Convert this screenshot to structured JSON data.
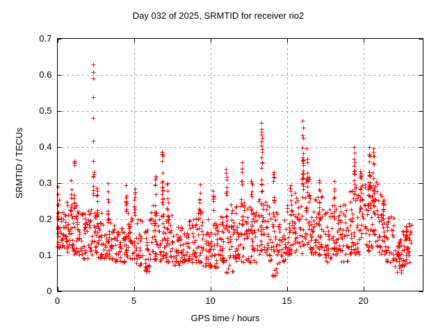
{
  "chart_data": {
    "type": "scatter",
    "title": "Day 032 of 2025, SRMTID for receiver rio2",
    "xlabel": "GPS time / hours",
    "ylabel": "SRMTID / TECUs",
    "xlim": [
      0,
      23.9
    ],
    "ylim": [
      0,
      0.7
    ],
    "xticks": [
      0,
      5,
      10,
      15,
      20
    ],
    "xtick_labels": [
      "0",
      "5",
      "10",
      "15",
      "20"
    ],
    "yticks": [
      0,
      0.1,
      0.2,
      0.3,
      0.4,
      0.5,
      0.6,
      0.7
    ],
    "ytick_labels": [
      "0",
      "0.1",
      "0.2",
      "0.3",
      "0.4",
      "0.5",
      "0.6",
      "0.7"
    ],
    "grid": true,
    "legend": "none",
    "marker": "plus",
    "marker_color": "#ff0000",
    "grid_color": "#9f9f9f",
    "axis_color": "#000000",
    "background": "#ffffff",
    "cloud": {
      "seed": 1032,
      "bands": [
        [
          0.0,
          0.5,
          0.12,
          0.27,
          34
        ],
        [
          0.5,
          1.0,
          0.1,
          0.25,
          32
        ],
        [
          1.0,
          1.5,
          0.1,
          0.24,
          32
        ],
        [
          1.5,
          2.0,
          0.09,
          0.22,
          30
        ],
        [
          2.0,
          2.5,
          0.1,
          0.24,
          30
        ],
        [
          2.5,
          3.0,
          0.09,
          0.22,
          30
        ],
        [
          3.0,
          3.5,
          0.08,
          0.2,
          30
        ],
        [
          3.5,
          4.0,
          0.08,
          0.19,
          28
        ],
        [
          4.0,
          4.5,
          0.08,
          0.2,
          30
        ],
        [
          4.5,
          5.0,
          0.09,
          0.22,
          30
        ],
        [
          5.0,
          5.5,
          0.07,
          0.2,
          30
        ],
        [
          5.5,
          6.0,
          0.05,
          0.18,
          28
        ],
        [
          6.0,
          6.5,
          0.08,
          0.24,
          30
        ],
        [
          6.5,
          7.0,
          0.08,
          0.26,
          30
        ],
        [
          7.0,
          7.5,
          0.08,
          0.21,
          30
        ],
        [
          7.5,
          8.0,
          0.07,
          0.18,
          28
        ],
        [
          8.0,
          8.5,
          0.08,
          0.18,
          30
        ],
        [
          8.5,
          9.0,
          0.08,
          0.2,
          30
        ],
        [
          9.0,
          9.5,
          0.08,
          0.22,
          30
        ],
        [
          9.5,
          10.0,
          0.07,
          0.2,
          30
        ],
        [
          10.0,
          10.5,
          0.06,
          0.21,
          30
        ],
        [
          10.5,
          11.0,
          0.08,
          0.24,
          30
        ],
        [
          11.0,
          11.5,
          0.05,
          0.24,
          30
        ],
        [
          11.5,
          12.0,
          0.08,
          0.24,
          30
        ],
        [
          12.0,
          12.5,
          0.08,
          0.26,
          30
        ],
        [
          12.5,
          13.0,
          0.08,
          0.24,
          30
        ],
        [
          13.0,
          13.5,
          0.1,
          0.27,
          30
        ],
        [
          13.5,
          14.0,
          0.08,
          0.25,
          30
        ],
        [
          14.0,
          14.5,
          0.04,
          0.22,
          30
        ],
        [
          14.5,
          15.0,
          0.08,
          0.21,
          30
        ],
        [
          15.0,
          15.5,
          0.1,
          0.24,
          30
        ],
        [
          15.5,
          16.0,
          0.1,
          0.29,
          32
        ],
        [
          16.0,
          16.5,
          0.12,
          0.33,
          32
        ],
        [
          16.5,
          17.0,
          0.1,
          0.26,
          30
        ],
        [
          17.0,
          17.5,
          0.1,
          0.27,
          30
        ],
        [
          17.5,
          18.0,
          0.08,
          0.24,
          30
        ],
        [
          18.0,
          18.5,
          0.1,
          0.26,
          30
        ],
        [
          18.5,
          19.0,
          0.08,
          0.24,
          30
        ],
        [
          19.0,
          19.5,
          0.1,
          0.28,
          30
        ],
        [
          19.5,
          20.0,
          0.1,
          0.3,
          32
        ],
        [
          20.0,
          20.5,
          0.11,
          0.32,
          34
        ],
        [
          20.5,
          21.0,
          0.12,
          0.33,
          34
        ],
        [
          21.0,
          21.5,
          0.1,
          0.27,
          30
        ],
        [
          21.5,
          22.0,
          0.08,
          0.22,
          28
        ],
        [
          22.0,
          22.5,
          0.05,
          0.15,
          26
        ],
        [
          22.5,
          23.0,
          0.07,
          0.17,
          26
        ],
        [
          23.0,
          23.15,
          0.13,
          0.19,
          8
        ]
      ],
      "columns": [
        [
          0.05,
          0.15,
          0.3,
          12
        ],
        [
          0.9,
          0.2,
          0.31,
          10
        ],
        [
          1.12,
          0.22,
          0.36,
          10
        ],
        [
          2.35,
          0.24,
          0.33,
          8
        ],
        [
          2.6,
          0.2,
          0.31,
          10
        ],
        [
          3.3,
          0.18,
          0.3,
          12
        ],
        [
          4.5,
          0.2,
          0.3,
          10
        ],
        [
          5.05,
          0.18,
          0.29,
          10
        ],
        [
          6.4,
          0.18,
          0.34,
          12
        ],
        [
          6.85,
          0.2,
          0.385,
          14
        ],
        [
          7.2,
          0.16,
          0.3,
          10
        ],
        [
          9.3,
          0.18,
          0.3,
          12
        ],
        [
          10.2,
          0.16,
          0.28,
          10
        ],
        [
          11.05,
          0.18,
          0.34,
          12
        ],
        [
          12.05,
          0.18,
          0.36,
          12
        ],
        [
          12.7,
          0.18,
          0.31,
          10
        ],
        [
          13.35,
          0.27,
          0.455,
          18
        ],
        [
          14.15,
          0.2,
          0.33,
          12
        ],
        [
          15.25,
          0.2,
          0.32,
          10
        ],
        [
          16.05,
          0.28,
          0.462,
          20
        ],
        [
          16.3,
          0.22,
          0.4,
          12
        ],
        [
          17.1,
          0.18,
          0.31,
          12
        ],
        [
          18.1,
          0.18,
          0.31,
          10
        ],
        [
          19.4,
          0.25,
          0.39,
          14
        ],
        [
          19.8,
          0.22,
          0.38,
          12
        ],
        [
          20.4,
          0.24,
          0.39,
          18
        ],
        [
          20.65,
          0.22,
          0.39,
          16
        ],
        [
          21.3,
          0.14,
          0.26,
          10
        ],
        [
          22.3,
          0.055,
          0.14,
          10
        ],
        [
          22.8,
          0.09,
          0.19,
          12
        ]
      ],
      "points": [
        [
          2.35,
          0.627
        ],
        [
          2.35,
          0.607
        ],
        [
          2.36,
          0.59
        ],
        [
          2.35,
          0.538
        ],
        [
          2.36,
          0.479
        ],
        [
          2.35,
          0.416
        ],
        [
          2.34,
          0.36
        ],
        [
          13.35,
          0.466
        ],
        [
          16.03,
          0.473
        ],
        [
          1.12,
          0.36
        ],
        [
          6.85,
          0.385
        ],
        [
          19.4,
          0.4
        ],
        [
          20.4,
          0.4
        ],
        [
          20.65,
          0.395
        ]
      ]
    }
  }
}
